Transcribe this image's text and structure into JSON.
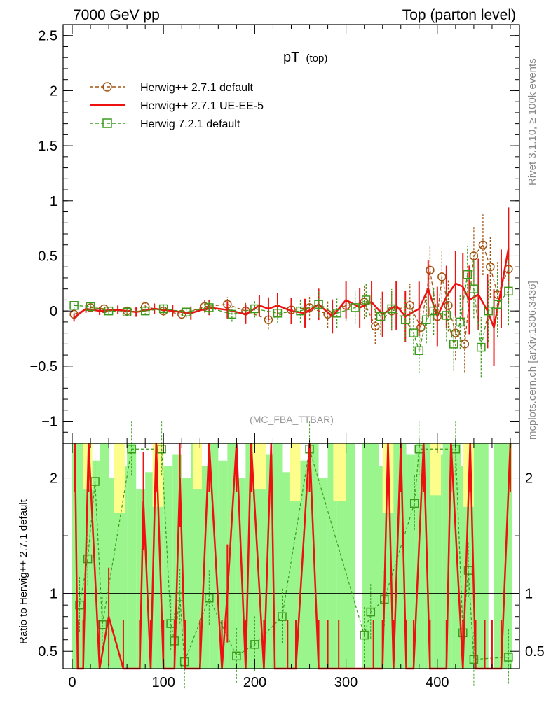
{
  "header": {
    "left": "7000 GeV pp",
    "right": "Top (parton level)"
  },
  "side": {
    "rivet": "Rivet 3.1.10, ≥ 100k events",
    "mcplots": "mcplots.cern.ch [arXiv:1306.3436]"
  },
  "colors": {
    "ref": "#a0520f",
    "ue": "#ee1111",
    "h7": "#3a9b1a",
    "band_green": "#99f58c",
    "band_yellow": "#fdfd8c"
  },
  "chart_data": [
    {
      "type": "line",
      "title": "pT",
      "title_sub": "(top)",
      "analysis": "(MC_FBA_TTBAR)",
      "xlim": [
        -10,
        490
      ],
      "ylim": [
        -1.2,
        2.6
      ],
      "yticks": [
        -1,
        -0.5,
        0,
        0.5,
        1,
        1.5,
        2,
        2.5
      ],
      "ytick_labels": [
        "−1",
        "−0.5",
        "0",
        "0.5",
        "1",
        "1.5",
        "2",
        "2.5"
      ],
      "legend_position": "top-left",
      "series": [
        {
          "name": "Herwig++ 2.7.1 default",
          "style": "dashed-circle",
          "points": [
            [
              2,
              -0.03
            ],
            [
              20,
              0.03
            ],
            [
              35,
              0.02
            ],
            [
              60,
              0.0
            ],
            [
              80,
              0.04
            ],
            [
              100,
              0.0
            ],
            [
              120,
              -0.03
            ],
            [
              145,
              0.04
            ],
            [
              170,
              0.06
            ],
            [
              190,
              0.0
            ],
            [
              215,
              -0.08
            ],
            [
              240,
              0.01
            ],
            [
              260,
              0.03
            ],
            [
              280,
              -0.03
            ],
            [
              300,
              0.05
            ],
            [
              320,
              0.08
            ],
            [
              332,
              -0.14
            ],
            [
              350,
              0.0
            ],
            [
              370,
              0.05
            ],
            [
              382,
              -0.15
            ],
            [
              392,
              0.37
            ],
            [
              400,
              -0.05
            ],
            [
              405,
              0.31
            ],
            [
              412,
              0.05
            ],
            [
              420,
              -0.2
            ],
            [
              430,
              -0.3
            ],
            [
              440,
              0.5
            ],
            [
              450,
              0.6
            ],
            [
              458,
              0.4
            ],
            [
              466,
              0.15
            ],
            [
              478,
              0.38
            ]
          ]
        },
        {
          "name": "Herwig++ 2.7.1 UE-EE-5",
          "style": "solid",
          "points": [
            [
              2,
              -0.06
            ],
            [
              15,
              0.02
            ],
            [
              30,
              0.0
            ],
            [
              50,
              0.01
            ],
            [
              70,
              -0.01
            ],
            [
              90,
              0.02
            ],
            [
              110,
              0.0
            ],
            [
              130,
              -0.02
            ],
            [
              150,
              0.03
            ],
            [
              170,
              0.01
            ],
            [
              190,
              -0.03
            ],
            [
              205,
              0.05
            ],
            [
              215,
              0.02
            ],
            [
              225,
              0.05
            ],
            [
              240,
              0.0
            ],
            [
              255,
              -0.02
            ],
            [
              270,
              0.06
            ],
            [
              285,
              -0.05
            ],
            [
              300,
              0.1
            ],
            [
              315,
              0.03
            ],
            [
              328,
              0.08
            ],
            [
              340,
              -0.03
            ],
            [
              355,
              0.05
            ],
            [
              365,
              -0.05
            ],
            [
              380,
              0.02
            ],
            [
              390,
              0.2
            ],
            [
              400,
              -0.05
            ],
            [
              410,
              0.13
            ],
            [
              420,
              0.25
            ],
            [
              428,
              0.22
            ],
            [
              435,
              0.1
            ],
            [
              445,
              0.15
            ],
            [
              455,
              0.0
            ],
            [
              462,
              -0.15
            ],
            [
              470,
              0.2
            ],
            [
              478,
              0.57
            ]
          ]
        },
        {
          "name": "Herwig 7.2.1 default",
          "style": "dashed-square",
          "points": [
            [
              2,
              0.05
            ],
            [
              20,
              0.04
            ],
            [
              40,
              0.0
            ],
            [
              60,
              -0.01
            ],
            [
              80,
              0.0
            ],
            [
              100,
              0.02
            ],
            [
              125,
              -0.01
            ],
            [
              150,
              0.03
            ],
            [
              175,
              -0.03
            ],
            [
              200,
              0.02
            ],
            [
              225,
              -0.02
            ],
            [
              250,
              0.0
            ],
            [
              270,
              0.06
            ],
            [
              290,
              -0.02
            ],
            [
              310,
              0.03
            ],
            [
              322,
              0.1
            ],
            [
              338,
              -0.05
            ],
            [
              350,
              0.02
            ],
            [
              365,
              -0.08
            ],
            [
              374,
              -0.2
            ],
            [
              380,
              -0.36
            ],
            [
              388,
              -0.08
            ],
            [
              396,
              0.0
            ],
            [
              410,
              -0.04
            ],
            [
              418,
              -0.3
            ],
            [
              425,
              -0.1
            ],
            [
              433,
              0.33
            ],
            [
              440,
              0.2
            ],
            [
              448,
              -0.33
            ],
            [
              456,
              0.0
            ],
            [
              466,
              0.06
            ],
            [
              478,
              0.18
            ]
          ]
        }
      ]
    },
    {
      "type": "line",
      "ylabel": "Ratio to Herwig++ 2.7.1 default",
      "xlim": [
        -10,
        490
      ],
      "ylim": [
        0.35,
        2.3
      ],
      "xticks": [
        0,
        100,
        200,
        300,
        400
      ],
      "xtick_labels": [
        "0",
        "100",
        "200",
        "300",
        "400"
      ],
      "yticks": [
        0.5,
        1,
        2
      ],
      "ytick_labels": [
        "0.5",
        "1",
        "2"
      ],
      "reference_line": 1,
      "h7_ratio": [
        [
          8,
          0.9
        ],
        [
          17,
          1.3
        ],
        [
          25,
          1.97
        ],
        [
          33,
          0.73
        ],
        [
          65,
          2.25
        ],
        [
          98,
          2.25
        ],
        [
          108,
          0.74
        ],
        [
          112,
          0.59
        ],
        [
          118,
          0.97
        ],
        [
          123,
          0.41
        ],
        [
          150,
          0.96
        ],
        [
          180,
          0.46
        ],
        [
          200,
          0.56
        ],
        [
          230,
          0.8
        ],
        [
          260,
          2.25
        ],
        [
          320,
          0.64
        ],
        [
          327,
          0.84
        ],
        [
          342,
          0.95
        ],
        [
          375,
          1.78
        ],
        [
          380,
          2.25
        ],
        [
          420,
          2.25
        ],
        [
          428,
          0.66
        ],
        [
          434,
          1.2
        ],
        [
          440,
          0.43
        ],
        [
          478,
          0.45
        ]
      ],
      "ue_ratio": [
        [
          3,
          2.3
        ],
        [
          6,
          0.35
        ],
        [
          12,
          0.35
        ],
        [
          18,
          2.3
        ],
        [
          30,
          0.35
        ],
        [
          40,
          0.8
        ],
        [
          56,
          0.35
        ],
        [
          74,
          0.35
        ],
        [
          78,
          1.8
        ],
        [
          86,
          0.35
        ],
        [
          92,
          2.3
        ],
        [
          100,
          0.35
        ],
        [
          112,
          0.35
        ],
        [
          118,
          2.0
        ],
        [
          124,
          0.35
        ],
        [
          140,
          0.35
        ],
        [
          150,
          2.3
        ],
        [
          164,
          0.35
        ],
        [
          170,
          1.0
        ],
        [
          180,
          2.3
        ],
        [
          190,
          0.35
        ],
        [
          196,
          2.3
        ],
        [
          210,
          0.35
        ],
        [
          218,
          2.3
        ],
        [
          222,
          0.35
        ],
        [
          236,
          0.35
        ],
        [
          245,
          0.35
        ],
        [
          260,
          2.3
        ],
        [
          270,
          0.35
        ],
        [
          280,
          0.35
        ],
        [
          292,
          0.35
        ],
        [
          330,
          0.35
        ],
        [
          340,
          0.35
        ],
        [
          346,
          2.3
        ],
        [
          352,
          0.35
        ],
        [
          360,
          2.3
        ],
        [
          366,
          0.35
        ],
        [
          374,
          0.35
        ],
        [
          385,
          2.3
        ],
        [
          392,
          0.35
        ],
        [
          410,
          0.35
        ],
        [
          415,
          2.3
        ],
        [
          428,
          0.35
        ],
        [
          436,
          2.3
        ],
        [
          442,
          0.35
        ],
        [
          452,
          0.35
        ],
        [
          460,
          0.35
        ],
        [
          470,
          0.35
        ],
        [
          480,
          2.3
        ]
      ],
      "band_ranges": [
        [
          0,
          10,
          2.3,
          0.35
        ],
        [
          10,
          20,
          2.3,
          0.35
        ],
        [
          20,
          30,
          2.15,
          0.35
        ],
        [
          30,
          40,
          2.3,
          0.35
        ],
        [
          40,
          50,
          2.0,
          0.35
        ],
        [
          50,
          60,
          2.1,
          0.35
        ],
        [
          60,
          70,
          2.3,
          0.35
        ],
        [
          70,
          80,
          1.9,
          0.35
        ],
        [
          80,
          90,
          2.05,
          0.35
        ],
        [
          90,
          100,
          2.3,
          0.35
        ],
        [
          100,
          110,
          2.1,
          0.35
        ],
        [
          110,
          120,
          2.2,
          0.35
        ],
        [
          120,
          130,
          2.0,
          0.35
        ],
        [
          130,
          140,
          2.3,
          0.35
        ],
        [
          140,
          150,
          2.1,
          0.35
        ],
        [
          150,
          160,
          2.3,
          0.35
        ],
        [
          160,
          170,
          2.15,
          0.35
        ],
        [
          170,
          180,
          2.3,
          0.35
        ],
        [
          180,
          190,
          2.0,
          0.35
        ],
        [
          190,
          200,
          2.3,
          0.35
        ],
        [
          200,
          210,
          2.1,
          0.35
        ],
        [
          210,
          220,
          2.2,
          0.35
        ],
        [
          220,
          230,
          2.3,
          0.35
        ],
        [
          230,
          240,
          2.05,
          0.35
        ],
        [
          240,
          250,
          2.3,
          0.35
        ],
        [
          250,
          260,
          2.15,
          0.35
        ],
        [
          260,
          270,
          2.3,
          0.35
        ],
        [
          270,
          280,
          2.0,
          0.35
        ],
        [
          280,
          290,
          2.3,
          0.35
        ],
        [
          290,
          300,
          2.1,
          0.35
        ],
        [
          300,
          310,
          2.3,
          0.35
        ],
        [
          318,
          326,
          2.3,
          0.35
        ],
        [
          326,
          336,
          2.3,
          0.35
        ],
        [
          336,
          346,
          2.1,
          0.35
        ],
        [
          346,
          356,
          2.3,
          0.35
        ],
        [
          356,
          366,
          2.3,
          0.35
        ],
        [
          366,
          376,
          2.2,
          0.35
        ],
        [
          376,
          386,
          2.3,
          0.35
        ],
        [
          386,
          396,
          2.3,
          0.35
        ],
        [
          396,
          406,
          2.2,
          0.35
        ],
        [
          406,
          416,
          2.3,
          0.35
        ],
        [
          416,
          426,
          2.3,
          0.35
        ],
        [
          426,
          436,
          2.1,
          0.35
        ],
        [
          436,
          446,
          2.3,
          0.35
        ],
        [
          446,
          456,
          2.3,
          0.35
        ],
        [
          462,
          472,
          2.3,
          0.35
        ],
        [
          472,
          482,
          2.3,
          0.35
        ]
      ],
      "yellow_ranges": [
        [
          12,
          22,
          2.3,
          1.9
        ],
        [
          46,
          58,
          2.3,
          1.7
        ],
        [
          88,
          100,
          2.3,
          1.75
        ],
        [
          132,
          142,
          2.3,
          1.9
        ],
        [
          198,
          212,
          2.3,
          1.9
        ],
        [
          238,
          250,
          2.3,
          1.8
        ],
        [
          286,
          300,
          2.3,
          1.8
        ],
        [
          340,
          352,
          2.3,
          1.7
        ],
        [
          392,
          404,
          2.3,
          1.85
        ],
        [
          428,
          440,
          2.3,
          1.75
        ]
      ]
    }
  ]
}
